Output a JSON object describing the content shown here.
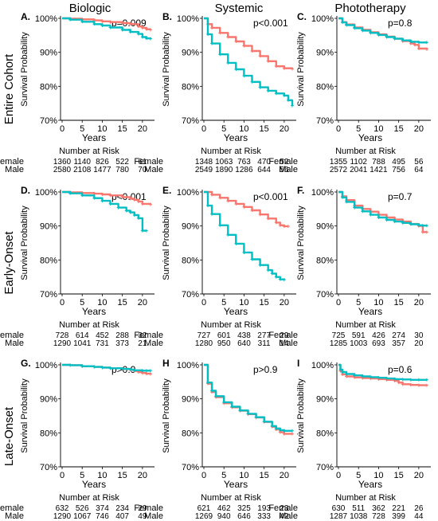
{
  "column_headers": [
    "Biologic",
    "Systemic",
    "Phototherapy"
  ],
  "row_headers": [
    "Entire Cohort",
    "Early-Onset",
    "Late-Onset"
  ],
  "colors": {
    "Female": "#F8766D",
    "Male": "#00BFC4"
  },
  "risk_table_title": "Number at Risk",
  "chart_data": [
    {
      "panel": "A.",
      "type": "line",
      "p_value": "p=0.009",
      "ylabel": "Survival Probability",
      "xlabel": "Years",
      "xlim": [
        0,
        23
      ],
      "ylim": [
        70,
        100
      ],
      "x_ticks": [
        0,
        5,
        10,
        15,
        20
      ],
      "y_ticks": [
        "70%",
        "80%",
        "90%",
        "100%"
      ],
      "series": [
        {
          "name": "Female",
          "x": [
            0,
            2,
            5,
            8,
            10,
            12,
            15,
            17,
            19,
            20,
            21,
            22
          ],
          "y": [
            100,
            99.9,
            99.7,
            99.4,
            99.1,
            98.9,
            98.6,
            98.3,
            97.6,
            97.2,
            96.8,
            96.6
          ]
        },
        {
          "name": "Male",
          "x": [
            0,
            2,
            5,
            8,
            10,
            12,
            15,
            17,
            19,
            20,
            21,
            22
          ],
          "y": [
            100,
            99.6,
            99.0,
            98.3,
            97.9,
            97.3,
            96.6,
            96.0,
            95.4,
            94.5,
            94.1,
            94.0
          ]
        }
      ],
      "risk_table": [
        {
          "label": "Female",
          "values": [
            "1360",
            "1140",
            "826",
            "522",
            "61"
          ]
        },
        {
          "label": "Male",
          "values": [
            "2580",
            "2108",
            "1477",
            "780",
            "70"
          ]
        }
      ]
    },
    {
      "panel": "B.",
      "type": "line",
      "p_value": "p<0.001",
      "ylabel": "Survival Probability",
      "xlabel": "Years",
      "xlim": [
        0,
        23
      ],
      "ylim": [
        70,
        100
      ],
      "x_ticks": [
        0,
        5,
        10,
        15,
        20
      ],
      "y_ticks": [
        "70%",
        "80%",
        "90%",
        "100%"
      ],
      "series": [
        {
          "name": "Female",
          "x": [
            0,
            1,
            2,
            4,
            6,
            8,
            10,
            12,
            14,
            16,
            18,
            20,
            22
          ],
          "y": [
            100,
            98.3,
            97.2,
            95.7,
            94.5,
            93.2,
            91.9,
            90.4,
            88.9,
            87.4,
            85.9,
            85.3,
            85.1
          ]
        },
        {
          "name": "Male",
          "x": [
            0,
            1,
            2,
            4,
            6,
            8,
            10,
            12,
            14,
            16,
            18,
            20,
            21,
            22
          ],
          "y": [
            100,
            95.3,
            92.6,
            89.4,
            86.9,
            85.0,
            83.1,
            81.3,
            79.7,
            78.7,
            77.9,
            77.3,
            75.9,
            74.3
          ]
        }
      ],
      "risk_table": [
        {
          "label": "Female",
          "values": [
            "1348",
            "1063",
            "763",
            "470",
            "52"
          ]
        },
        {
          "label": "Male",
          "values": [
            "2549",
            "1890",
            "1286",
            "644",
            "56"
          ]
        }
      ]
    },
    {
      "panel": "C.",
      "type": "line",
      "p_value": "p=0.8",
      "ylabel": "Survival Probability",
      "xlabel": "Years",
      "xlim": [
        0,
        23
      ],
      "ylim": [
        70,
        100
      ],
      "x_ticks": [
        0,
        5,
        10,
        15,
        20
      ],
      "y_ticks": [
        "70%",
        "80%",
        "90%",
        "100%"
      ],
      "series": [
        {
          "name": "Female",
          "x": [
            0,
            1,
            2,
            4,
            6,
            8,
            10,
            12,
            14,
            16,
            18,
            19,
            20,
            22
          ],
          "y": [
            100,
            98.9,
            98.2,
            97.3,
            96.6,
            95.9,
            95.3,
            94.6,
            94.0,
            93.3,
            92.6,
            92.2,
            91.1,
            90.9
          ]
        },
        {
          "name": "Male",
          "x": [
            0,
            1,
            2,
            4,
            6,
            8,
            10,
            12,
            14,
            16,
            18,
            20,
            22
          ],
          "y": [
            100,
            98.8,
            98.0,
            97.1,
            96.4,
            95.7,
            95.1,
            94.5,
            94.0,
            93.5,
            93.1,
            92.9,
            92.9
          ]
        }
      ],
      "risk_table": [
        {
          "label": "Female",
          "values": [
            "1355",
            "1102",
            "788",
            "495",
            "56"
          ]
        },
        {
          "label": "Male",
          "values": [
            "2572",
            "2041",
            "1421",
            "756",
            "64"
          ]
        }
      ]
    },
    {
      "panel": "D.",
      "type": "line",
      "p_value": "p<0.001",
      "ylabel": "Survival Probability",
      "xlabel": "Years",
      "xlim": [
        0,
        23
      ],
      "ylim": [
        70,
        100
      ],
      "x_ticks": [
        0,
        5,
        10,
        15,
        20
      ],
      "y_ticks": [
        "70%",
        "80%",
        "90%",
        "100%"
      ],
      "series": [
        {
          "name": "Female",
          "x": [
            0,
            2,
            5,
            8,
            10,
            12,
            15,
            17,
            18,
            19,
            20,
            22
          ],
          "y": [
            100,
            99.9,
            99.7,
            99.5,
            99.3,
            99.0,
            98.5,
            98.0,
            97.7,
            97.2,
            96.5,
            96.3
          ]
        },
        {
          "name": "Male",
          "x": [
            0,
            2,
            5,
            8,
            10,
            12,
            14,
            16,
            17,
            18,
            19,
            20,
            21
          ],
          "y": [
            100,
            99.6,
            99.0,
            98.2,
            97.4,
            96.5,
            95.4,
            94.5,
            94.0,
            93.2,
            92.3,
            88.6,
            88.6
          ]
        }
      ],
      "risk_table": [
        {
          "label": "Female",
          "values": [
            "728",
            "614",
            "452",
            "288",
            "32"
          ]
        },
        {
          "label": "Male",
          "values": [
            "1290",
            "1041",
            "731",
            "373",
            "21"
          ]
        }
      ]
    },
    {
      "panel": "E.",
      "type": "line",
      "p_value": "p<0.001",
      "ylabel": "Survival Probability",
      "xlabel": "Years",
      "xlim": [
        0,
        23
      ],
      "ylim": [
        70,
        100
      ],
      "x_ticks": [
        0,
        5,
        10,
        15,
        20
      ],
      "y_ticks": [
        "70%",
        "80%",
        "90%",
        "100%"
      ],
      "series": [
        {
          "name": "Female",
          "x": [
            0,
            2,
            4,
            6,
            8,
            10,
            12,
            14,
            16,
            18,
            19,
            20,
            21
          ],
          "y": [
            100,
            99.2,
            98.3,
            97.4,
            96.5,
            95.6,
            94.6,
            93.4,
            92.2,
            91.0,
            90.2,
            89.9,
            89.9
          ]
        },
        {
          "name": "Male",
          "x": [
            0,
            1,
            2,
            4,
            6,
            8,
            10,
            12,
            14,
            16,
            17,
            18,
            19,
            20
          ],
          "y": [
            100,
            96.0,
            93.5,
            90.2,
            87.4,
            84.8,
            82.2,
            80.2,
            78.5,
            77.0,
            76.0,
            75.0,
            74.3,
            74.2
          ]
        }
      ],
      "risk_table": [
        {
          "label": "Female",
          "values": [
            "727",
            "601",
            "438",
            "277",
            "29"
          ]
        },
        {
          "label": "Male",
          "values": [
            "1280",
            "950",
            "640",
            "311",
            "14"
          ]
        }
      ]
    },
    {
      "panel": "F.",
      "type": "line",
      "p_value": "p=0.7",
      "ylabel": "Survival Probability",
      "xlabel": "Years",
      "xlim": [
        0,
        23
      ],
      "ylim": [
        70,
        100
      ],
      "x_ticks": [
        0,
        5,
        10,
        15,
        20
      ],
      "y_ticks": [
        "70%",
        "80%",
        "90%",
        "100%"
      ],
      "series": [
        {
          "name": "Female",
          "x": [
            0,
            1,
            2,
            4,
            6,
            8,
            10,
            12,
            14,
            16,
            18,
            20,
            21,
            22
          ],
          "y": [
            100,
            98.7,
            97.6,
            96.0,
            95.0,
            94.2,
            93.3,
            92.5,
            91.9,
            91.3,
            90.6,
            90.0,
            88.2,
            88.2
          ]
        },
        {
          "name": "Male",
          "x": [
            0,
            1,
            2,
            4,
            6,
            8,
            10,
            12,
            14,
            16,
            18,
            20,
            21,
            22
          ],
          "y": [
            100,
            98.4,
            97.1,
            95.4,
            94.3,
            93.3,
            92.5,
            91.8,
            91.3,
            90.9,
            90.5,
            90.2,
            90.1,
            90.1
          ]
        }
      ],
      "risk_table": [
        {
          "label": "Female",
          "values": [
            "725",
            "591",
            "426",
            "274",
            "30"
          ]
        },
        {
          "label": "Male",
          "values": [
            "1285",
            "1003",
            "693",
            "357",
            "20"
          ]
        }
      ]
    },
    {
      "panel": "G.",
      "type": "line",
      "p_value": "p>0.9",
      "ylabel": "Survival Probability",
      "xlabel": "Years",
      "xlim": [
        0,
        23
      ],
      "ylim": [
        70,
        100
      ],
      "x_ticks": [
        0,
        5,
        10,
        15,
        20
      ],
      "y_ticks": [
        "70%",
        "80%",
        "90%",
        "100%"
      ],
      "series": [
        {
          "name": "Female",
          "x": [
            0,
            2,
            5,
            8,
            10,
            12,
            15,
            17,
            18,
            19,
            20,
            21,
            22
          ],
          "y": [
            100,
            99.9,
            99.6,
            99.4,
            99.2,
            99.0,
            98.8,
            98.5,
            98.2,
            97.9,
            97.6,
            97.4,
            97.3
          ]
        },
        {
          "name": "Male",
          "x": [
            0,
            2,
            5,
            8,
            10,
            12,
            15,
            17,
            18,
            20,
            21,
            22
          ],
          "y": [
            100,
            99.9,
            99.6,
            99.4,
            99.2,
            99.0,
            98.8,
            98.6,
            98.4,
            98.3,
            98.3,
            98.3
          ]
        }
      ],
      "risk_table": [
        {
          "label": "Female",
          "values": [
            "632",
            "526",
            "374",
            "234",
            "29"
          ]
        },
        {
          "label": "Male",
          "values": [
            "1290",
            "1067",
            "746",
            "407",
            "49"
          ]
        }
      ]
    },
    {
      "panel": "H",
      "type": "line",
      "p_value": "p>0.9",
      "ylabel": "Survival Probability",
      "xlabel": "Years",
      "xlim": [
        0,
        23
      ],
      "ylim": [
        70,
        100
      ],
      "x_ticks": [
        0,
        5,
        10,
        15,
        20
      ],
      "y_ticks": [
        "70%",
        "80%",
        "90%",
        "100%"
      ],
      "series": [
        {
          "name": "Female",
          "x": [
            0,
            1,
            2,
            3,
            5,
            7,
            9,
            11,
            13,
            15,
            17,
            18,
            19,
            20,
            22
          ],
          "y": [
            100,
            94.5,
            92.0,
            90.5,
            88.7,
            87.5,
            86.5,
            85.5,
            84.5,
            83.2,
            81.8,
            81.0,
            80.2,
            79.7,
            79.7
          ]
        },
        {
          "name": "Male",
          "x": [
            0,
            1,
            2,
            3,
            5,
            7,
            9,
            11,
            13,
            15,
            17,
            18,
            19,
            20,
            22
          ],
          "y": [
            100,
            94.8,
            92.4,
            90.8,
            89.0,
            87.7,
            86.6,
            85.6,
            84.6,
            83.3,
            82.0,
            81.3,
            80.8,
            80.6,
            80.6
          ]
        }
      ],
      "risk_table": [
        {
          "label": "Female",
          "values": [
            "621",
            "462",
            "325",
            "193",
            "23"
          ]
        },
        {
          "label": "Male",
          "values": [
            "1269",
            "940",
            "646",
            "333",
            "42"
          ]
        }
      ]
    },
    {
      "panel": "I",
      "type": "line",
      "p_value": "p=0.6",
      "ylabel": "Survival Probability",
      "xlabel": "Years",
      "xlim": [
        0,
        23
      ],
      "ylim": [
        70,
        100
      ],
      "x_ticks": [
        0,
        5,
        10,
        15,
        20
      ],
      "y_ticks": [
        "70%",
        "80%",
        "90%",
        "100%"
      ],
      "series": [
        {
          "name": "Female",
          "x": [
            0,
            0.5,
            1,
            2,
            4,
            6,
            8,
            10,
            12,
            14,
            15,
            16,
            18,
            20,
            22
          ],
          "y": [
            100,
            98.2,
            97.2,
            96.6,
            96.3,
            96.1,
            96.0,
            95.8,
            95.6,
            95.3,
            94.8,
            94.3,
            94.1,
            94.0,
            94.0
          ]
        },
        {
          "name": "Male",
          "x": [
            0,
            0.5,
            1,
            2,
            4,
            6,
            8,
            10,
            12,
            14,
            16,
            18,
            20,
            22
          ],
          "y": [
            100,
            98.6,
            97.9,
            97.3,
            96.9,
            96.6,
            96.4,
            96.2,
            96.0,
            95.8,
            95.7,
            95.6,
            95.6,
            95.6
          ]
        }
      ],
      "risk_table": [
        {
          "label": "Female",
          "values": [
            "630",
            "511",
            "362",
            "221",
            "26"
          ]
        },
        {
          "label": "Male",
          "values": [
            "1287",
            "1038",
            "728",
            "399",
            "44"
          ]
        }
      ]
    }
  ]
}
